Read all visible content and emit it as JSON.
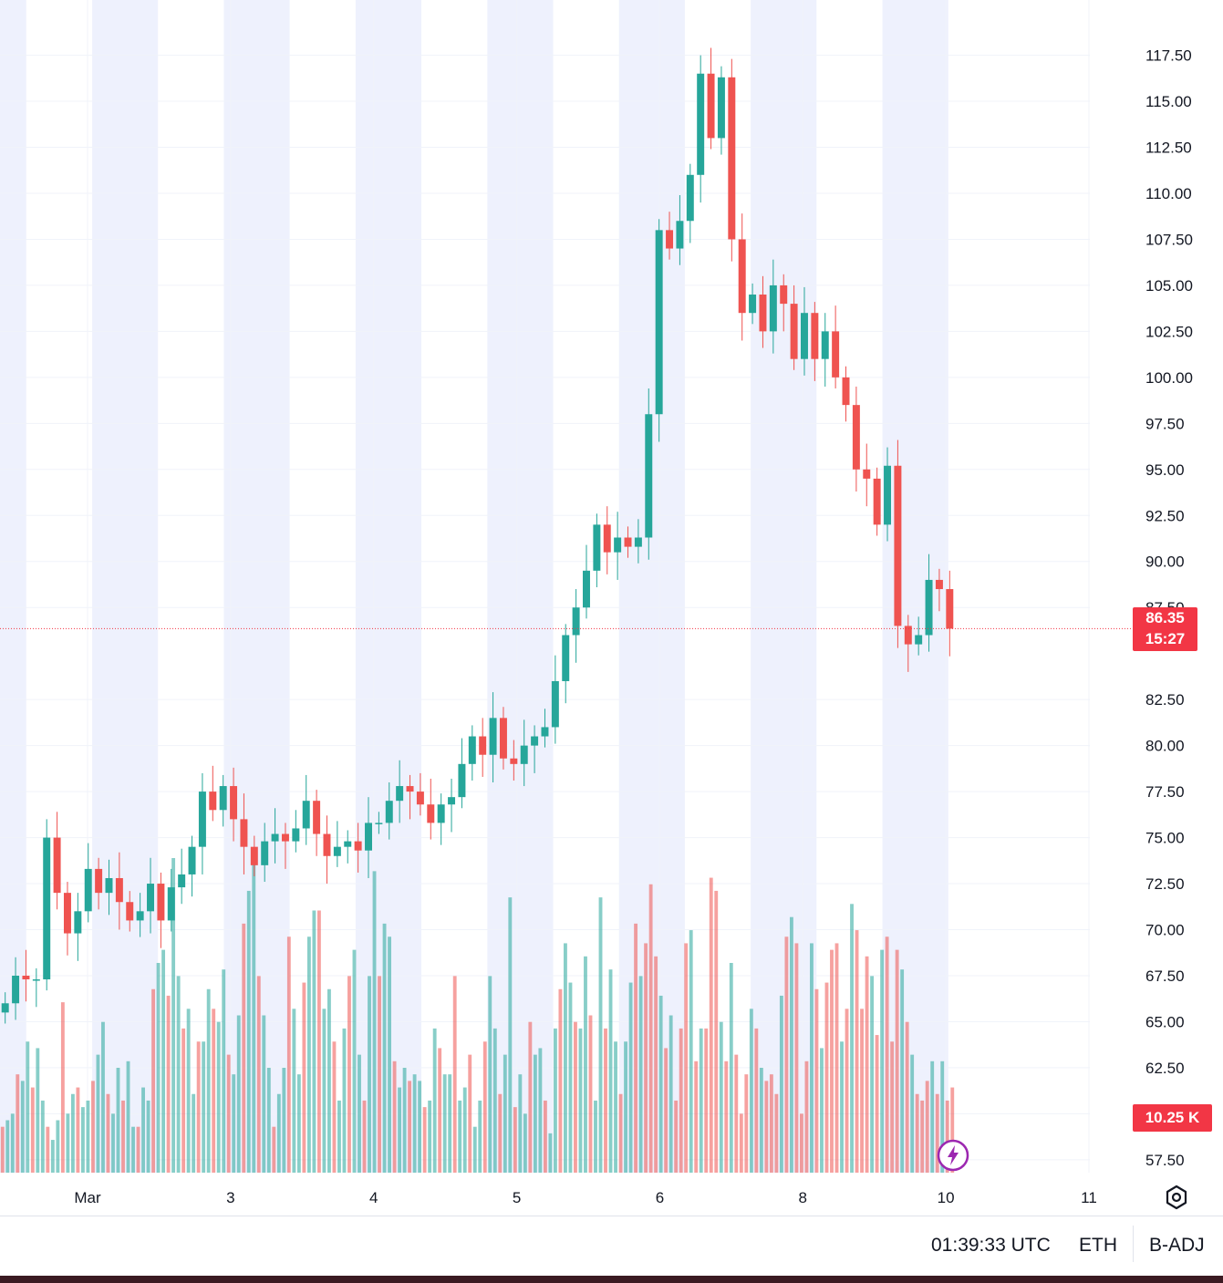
{
  "chart_data": {
    "type": "candlestick",
    "title": "",
    "price_axis": {
      "ticks": [
        "117.50",
        "115.00",
        "112.50",
        "110.00",
        "107.50",
        "105.00",
        "102.50",
        "100.00",
        "97.50",
        "95.00",
        "92.50",
        "90.00",
        "87.50",
        "82.50",
        "80.00",
        "77.50",
        "75.00",
        "72.50",
        "70.00",
        "67.50",
        "65.00",
        "62.50",
        "60.00",
        "57.50"
      ],
      "range": [
        56.8,
        120.5
      ]
    },
    "time_axis": {
      "ticks": [
        "Mar",
        "3",
        "4",
        "5",
        "6",
        "8",
        "10",
        "11"
      ]
    },
    "last_price": "86.35",
    "last_price_value": 86.35,
    "countdown": "15:27",
    "volume_label": "10.25 K",
    "price_path": [
      [
        66.0,
        "up"
      ],
      [
        67.5,
        "up"
      ],
      [
        67.3,
        "down"
      ],
      [
        67.3,
        "flat"
      ],
      [
        75.0,
        "up"
      ],
      [
        72.0,
        "down"
      ],
      [
        69.8,
        "down"
      ],
      [
        71.0,
        "up"
      ],
      [
        73.3,
        "up"
      ],
      [
        72.0,
        "down"
      ],
      [
        72.8,
        "up"
      ],
      [
        71.5,
        "down"
      ],
      [
        70.5,
        "down"
      ],
      [
        71.0,
        "up"
      ],
      [
        72.5,
        "up"
      ],
      [
        70.5,
        "down"
      ],
      [
        72.3,
        "up"
      ],
      [
        73.0,
        "up"
      ],
      [
        74.5,
        "up"
      ],
      [
        77.5,
        "up"
      ],
      [
        76.5,
        "down"
      ],
      [
        77.8,
        "up"
      ],
      [
        76.0,
        "down"
      ],
      [
        74.5,
        "down"
      ],
      [
        73.5,
        "down"
      ],
      [
        74.8,
        "up"
      ],
      [
        75.2,
        "up"
      ],
      [
        74.8,
        "down"
      ],
      [
        75.5,
        "up"
      ],
      [
        77.0,
        "up"
      ],
      [
        75.2,
        "down"
      ],
      [
        74.0,
        "down"
      ],
      [
        74.5,
        "up"
      ],
      [
        74.8,
        "up"
      ],
      [
        74.3,
        "down"
      ],
      [
        75.8,
        "up"
      ],
      [
        75.8,
        "flat"
      ],
      [
        77.0,
        "up"
      ],
      [
        77.8,
        "up"
      ],
      [
        77.5,
        "down"
      ],
      [
        76.8,
        "down"
      ],
      [
        75.8,
        "down"
      ],
      [
        76.8,
        "up"
      ],
      [
        77.2,
        "up"
      ],
      [
        79.0,
        "up"
      ],
      [
        80.5,
        "up"
      ],
      [
        79.5,
        "down"
      ],
      [
        81.5,
        "up"
      ],
      [
        79.3,
        "down"
      ],
      [
        79.0,
        "down"
      ],
      [
        80.0,
        "up"
      ],
      [
        80.5,
        "up"
      ],
      [
        81.0,
        "up"
      ],
      [
        83.5,
        "up"
      ],
      [
        86.0,
        "up"
      ],
      [
        87.5,
        "up"
      ],
      [
        89.5,
        "up"
      ],
      [
        92.0,
        "up"
      ],
      [
        90.5,
        "down"
      ],
      [
        91.3,
        "up"
      ],
      [
        90.8,
        "down"
      ],
      [
        91.3,
        "up"
      ],
      [
        98.0,
        "up"
      ],
      [
        108.0,
        "up"
      ],
      [
        107.0,
        "down"
      ],
      [
        108.5,
        "up"
      ],
      [
        111.0,
        "up"
      ],
      [
        116.5,
        "up"
      ],
      [
        113.0,
        "down"
      ],
      [
        116.3,
        "up"
      ],
      [
        107.5,
        "down"
      ],
      [
        103.5,
        "down"
      ],
      [
        104.5,
        "up"
      ],
      [
        102.5,
        "down"
      ],
      [
        105.0,
        "up"
      ],
      [
        104.0,
        "down"
      ],
      [
        101.0,
        "down"
      ],
      [
        103.5,
        "up"
      ],
      [
        101.0,
        "down"
      ],
      [
        102.5,
        "up"
      ],
      [
        100.0,
        "down"
      ],
      [
        98.5,
        "down"
      ],
      [
        95.0,
        "down"
      ],
      [
        94.5,
        "down"
      ],
      [
        92.0,
        "down"
      ],
      [
        95.2,
        "up"
      ],
      [
        86.5,
        "down"
      ],
      [
        85.5,
        "down"
      ],
      [
        86.0,
        "up"
      ],
      [
        89.0,
        "up"
      ],
      [
        88.5,
        "down"
      ],
      [
        86.35,
        "down"
      ]
    ],
    "volume_bars": [
      7,
      8,
      9,
      15,
      14,
      20,
      13,
      19,
      11,
      7,
      5,
      8,
      26,
      9,
      12,
      13,
      10,
      11,
      14,
      18,
      23,
      12,
      9,
      16,
      11,
      17,
      7,
      7,
      13,
      11,
      28,
      32,
      34,
      27,
      48,
      30,
      22,
      25,
      12,
      20,
      20,
      28,
      25,
      23,
      31,
      18,
      15,
      24,
      38,
      43,
      48,
      30,
      24,
      16,
      7,
      12,
      16,
      36,
      25,
      15,
      29,
      36,
      40,
      40,
      25,
      28,
      20,
      11,
      22,
      30,
      34,
      18,
      11,
      30,
      46,
      30,
      38,
      36,
      17,
      13,
      16,
      14,
      15,
      14,
      10,
      11,
      22,
      19,
      15,
      15,
      30,
      11,
      13,
      18,
      7,
      11,
      20,
      30,
      22,
      12,
      18,
      42,
      10,
      15,
      9,
      23,
      18,
      19,
      11,
      6,
      22,
      28,
      35,
      29,
      23,
      22,
      33,
      24,
      11,
      42,
      22,
      31,
      20,
      12,
      20,
      29,
      38,
      30,
      35,
      44,
      33,
      27,
      19,
      24,
      11,
      22,
      35,
      37,
      17,
      22,
      22,
      45,
      43,
      23,
      17,
      32,
      18,
      9,
      15,
      25,
      22,
      16,
      14,
      15,
      12,
      27,
      36,
      39,
      35,
      9,
      17,
      35,
      28,
      19,
      29,
      34,
      35,
      20,
      25,
      41,
      37,
      25,
      33,
      30,
      21,
      34,
      36,
      20,
      34,
      31,
      23,
      18,
      12,
      11,
      14,
      17,
      12,
      17,
      11,
      13
    ],
    "time_bands": [
      "shaded",
      "white",
      "shaded",
      "white",
      "shaded",
      "white",
      "shaded",
      "white",
      "shaded",
      "white",
      "shaded",
      "white",
      "shaded",
      "white",
      "shaded"
    ]
  },
  "bottom_bar": {
    "clock": "01:39:33 UTC",
    "currency": "ETH",
    "adjustment": "B-ADJ"
  },
  "colors": {
    "up": "#26a69a",
    "down": "#ef5350",
    "band": "#eef1fd",
    "grid": "#f0f3fa",
    "price_line": "#f23645"
  },
  "icons": {
    "settings": "settings-icon",
    "lightning": "lightning-icon"
  }
}
